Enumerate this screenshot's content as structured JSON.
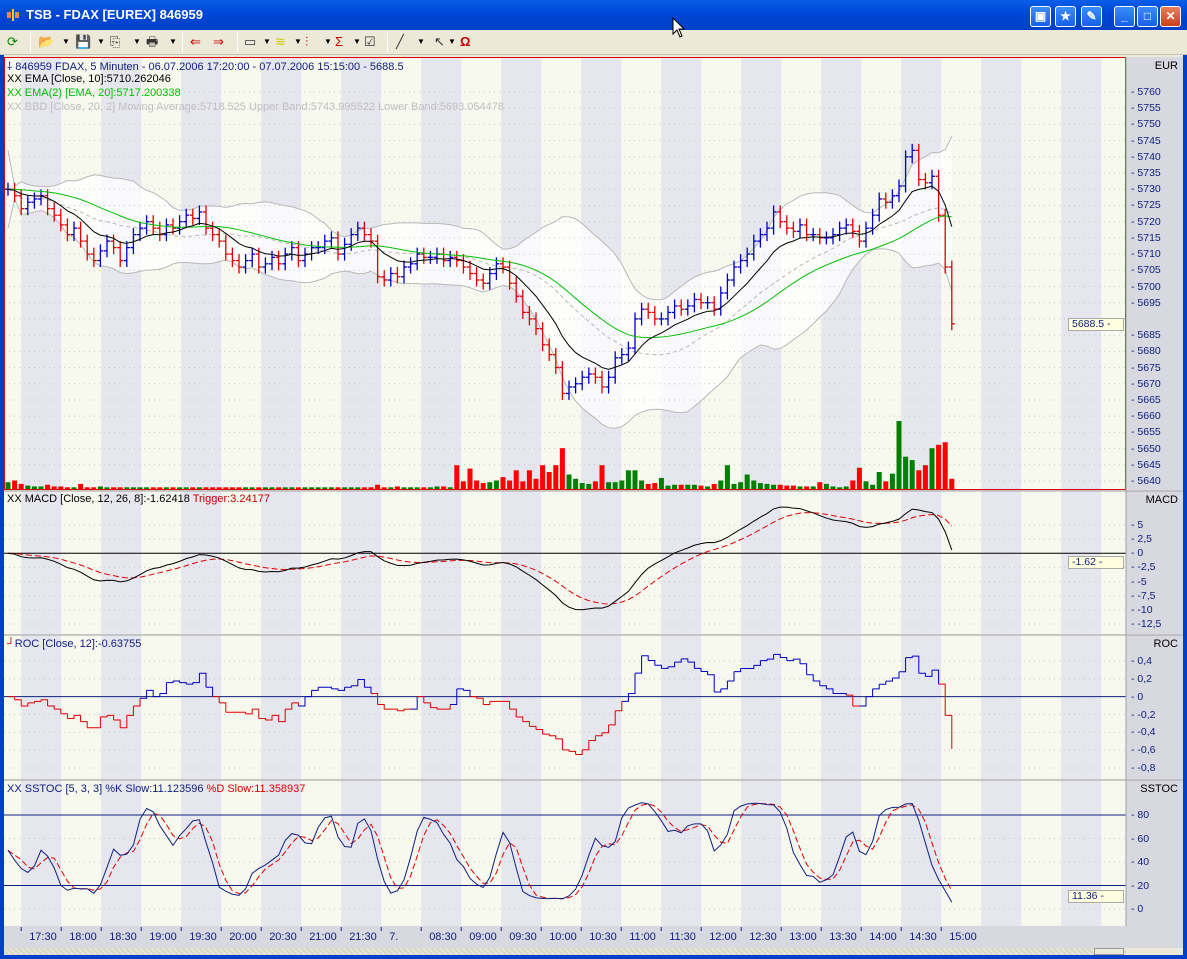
{
  "window": {
    "title": "TSB - FDAX [EUREX] 846959",
    "buttons": [
      "minimize",
      "maximize",
      "close"
    ],
    "extra_buttons": [
      "pin-icon",
      "star-icon",
      "leaf-icon"
    ]
  },
  "toolbar": {
    "items": [
      "refresh-icon",
      "open-folder-icon",
      "save-icon",
      "copy-icon",
      "print-icon",
      "scroll-left-icon",
      "scroll-right-icon",
      "window-layout-icon",
      "indicator-icon",
      "candlestick-icon",
      "sigma-icon",
      "properties-icon",
      "draw-line-icon",
      "pointer-icon",
      "magnet-icon"
    ]
  },
  "legends": {
    "price": "846959  FDAX, 5 Minuten - 06.07.2006 17:20:00 - 07.07.2006 15:15:00 - 5688.5",
    "ema10": "XX EMA [Close, 10]:5710.262046",
    "ema20": "XX EMA(2) [EMA, 20]:5717.200338",
    "bbd": "XX BBD [Close, 20, 2] Moving Average:5718.525 Upper Band:5743.995522 Lower Band:5693.054478",
    "macd": "XX MACD [Close, 12, 26, 8]:-1.62418",
    "macd_trigger": "Trigger:3.24177",
    "roc": "ROC [Close, 12]:-0.63755",
    "sstoc_k": "XX SSTOC [5, 3, 3] %K Slow:11.123596",
    "sstoc_d": "%D Slow:11.358937"
  },
  "colors": {
    "up": "#0000c0",
    "down": "#e00000",
    "vol_up": "#008000",
    "vol_down": "#ff0000",
    "ema10": "#000000",
    "ema20": "#00c000",
    "band": "#b8b8b8",
    "trigger": "#e00000"
  },
  "chart_data": [
    {
      "type": "ohlc",
      "pane": "price",
      "axis_title": "EUR",
      "current": "5688.5",
      "ylim": [
        5640,
        5765
      ],
      "yticks": [
        "5760",
        "5755",
        "5750",
        "5745",
        "5740",
        "5735",
        "5730",
        "5725",
        "5720",
        "5715",
        "5710",
        "5705",
        "5700",
        "5695",
        "5685",
        "5680",
        "5675",
        "5670",
        "5665",
        "5660",
        "5655",
        "5650",
        "5645",
        "5640"
      ],
      "closes": [
        5730,
        5728,
        5724,
        5726,
        5727,
        5728,
        5724,
        5722,
        5719,
        5716,
        5718,
        5714,
        5710,
        5708,
        5711,
        5714,
        5712,
        5708,
        5712,
        5716,
        5718,
        5720,
        5718,
        5716,
        5719,
        5718,
        5720,
        5722,
        5721,
        5723,
        5718,
        5716,
        5714,
        5710,
        5708,
        5706,
        5708,
        5710,
        5706,
        5707,
        5709,
        5707,
        5710,
        5712,
        5708,
        5710,
        5712,
        5712,
        5714,
        5715,
        5710,
        5713,
        5716,
        5718,
        5716,
        5714,
        5703,
        5702,
        5704,
        5703,
        5706,
        5707,
        5710,
        5709,
        5709,
        5710,
        5708,
        5709,
        5708,
        5706,
        5704,
        5702,
        5701,
        5704,
        5707,
        5706,
        5701,
        5697,
        5692,
        5690,
        5687,
        5682,
        5679,
        5675,
        5667,
        5669,
        5670,
        5672,
        5673,
        5672,
        5669,
        5672,
        5678,
        5679,
        5681,
        5690,
        5693,
        5692,
        5690,
        5690,
        5692,
        5694,
        5693,
        5694,
        5696,
        5695,
        5695,
        5693,
        5698,
        5702,
        5706,
        5708,
        5710,
        5714,
        5716,
        5718,
        5723,
        5720,
        5718,
        5717,
        5719,
        5716,
        5716,
        5715,
        5715,
        5716,
        5718,
        5719,
        5717,
        5714,
        5718,
        5722,
        5727,
        5726,
        5728,
        5731,
        5740,
        5742,
        5733,
        5732,
        5734,
        5722,
        5706,
        5688.5
      ],
      "volumes": [
        8,
        10,
        6,
        4,
        3,
        3,
        5,
        3,
        3,
        2,
        2,
        6,
        2,
        2,
        3,
        2,
        2,
        2,
        2,
        2,
        2,
        2,
        2,
        2,
        2,
        2,
        2,
        2,
        2,
        2,
        2,
        2,
        2,
        2,
        2,
        2,
        2,
        2,
        2,
        2,
        2,
        2,
        2,
        2,
        2,
        2,
        2,
        2,
        2,
        2,
        2,
        2,
        2,
        2,
        2,
        2,
        5,
        2,
        2,
        3,
        2,
        2,
        2,
        2,
        2,
        3,
        3,
        2,
        28,
        9,
        24,
        10,
        7,
        8,
        10,
        14,
        10,
        22,
        9,
        22,
        12,
        28,
        20,
        28,
        48,
        17,
        12,
        7,
        6,
        9,
        28,
        8,
        8,
        10,
        22,
        22,
        10,
        6,
        7,
        13,
        4,
        5,
        5,
        5,
        5,
        4,
        3,
        6,
        10,
        28,
        6,
        8,
        17,
        10,
        7,
        6,
        5,
        5,
        4,
        4,
        3,
        3,
        3,
        8,
        6,
        3,
        2,
        3,
        10,
        25,
        9,
        5,
        20,
        9,
        18,
        80,
        38,
        34,
        22,
        28,
        48,
        52,
        55,
        12
      ]
    },
    {
      "type": "line",
      "pane": "macd",
      "axis_title": "MACD",
      "current": "-1.62",
      "ylim": [
        -14,
        8
      ],
      "yticks": [
        "5",
        "2,5",
        "0",
        "-2,5",
        "-5",
        "-7,5",
        "-10",
        "-12,5"
      ]
    },
    {
      "type": "step",
      "pane": "roc",
      "axis_title": "ROC",
      "ylim": [
        -0.9,
        0.5
      ],
      "yticks": [
        "0,4",
        "0,2",
        "0",
        "-0,2",
        "-0,4",
        "-0,6",
        "-0,8"
      ]
    },
    {
      "type": "line",
      "pane": "sstoc",
      "axis_title": "SSTOC",
      "current": "11.36",
      "ylim": [
        -5,
        100
      ],
      "yticks": [
        "80",
        "60",
        "40",
        "20",
        "0"
      ],
      "levels": [
        80,
        20
      ]
    }
  ],
  "time_axis": {
    "labels": [
      "17:30",
      "18:00",
      "18:30",
      "19:00",
      "19:30",
      "20:00",
      "20:30",
      "21:00",
      "21:30",
      "7.",
      "08:30",
      "09:00",
      "09:30",
      "10:00",
      "10:30",
      "11:00",
      "11:30",
      "12:00",
      "12:30",
      "13:00",
      "13:30",
      "14:00",
      "14:30",
      "15:00"
    ]
  }
}
